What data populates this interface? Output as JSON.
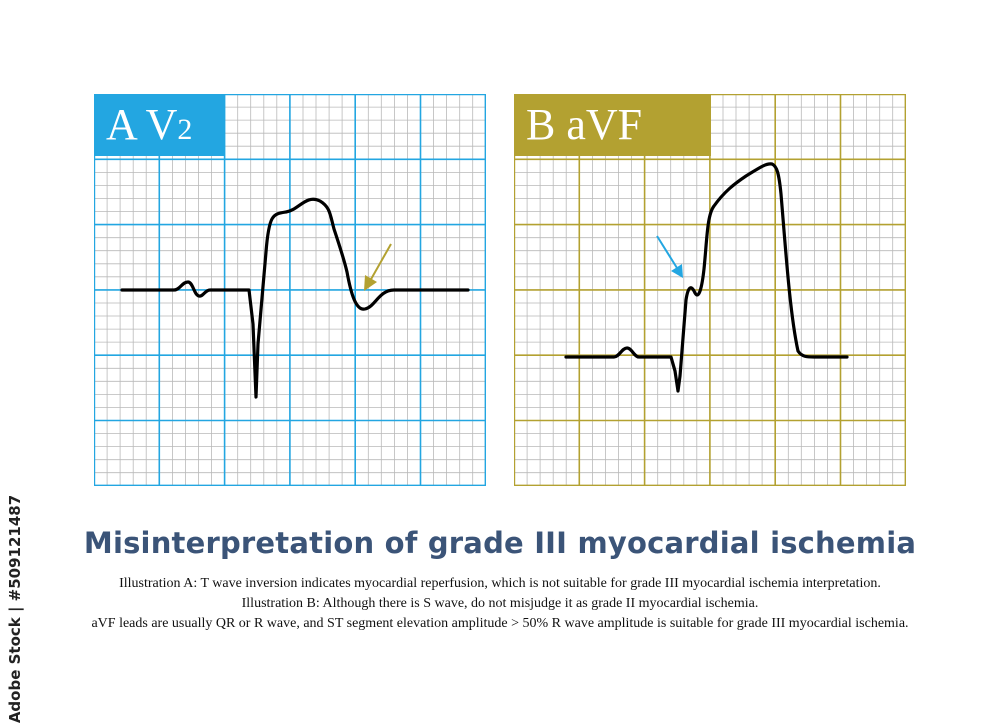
{
  "panel_a": {
    "letter": "A",
    "lead": "V",
    "lead_sub": "2",
    "grid_color": "#23a6e1",
    "label_bg": "#23a6e1",
    "arrow_color": "#b3a131",
    "arrow_icon": "arrow-down-left-icon"
  },
  "panel_b": {
    "letter": "B",
    "lead": "aVF",
    "grid_color": "#b3a131",
    "label_bg": "#b3a131",
    "arrow_color": "#23a6e1",
    "arrow_icon": "arrow-down-right-icon"
  },
  "title": "Misinterpretation of grade III myocardial ischemia",
  "captions": [
    "Illustration A: T wave inversion indicates myocardial reperfusion, which is not suitable for grade III myocardial ischemia interpretation.",
    "Illustration B: Although there is S wave, do not misjudge it as grade II myocardial ischemia.",
    "aVF leads are usually QR or R wave, and ST segment elevation amplitude > 50% R wave amplitude is suitable for grade III myocardial ischemia."
  ],
  "stock_id": "Adobe Stock | #509121487",
  "colors": {
    "title": "#3b5478",
    "minor_grid": "#b9b9b9",
    "trace": "#000000"
  }
}
